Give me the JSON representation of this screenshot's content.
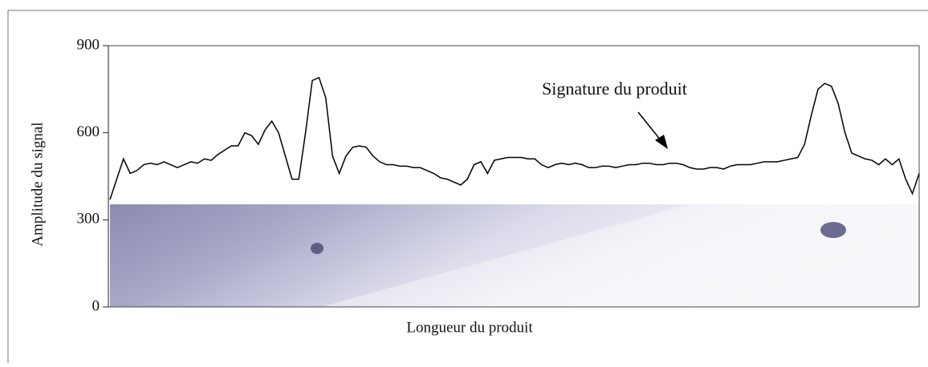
{
  "chart_data": {
    "type": "line",
    "ylabel": "Amplitude du signal",
    "xlabel": "Longueur du produit",
    "annotation": "Signature du produit",
    "ylim": [
      0,
      900
    ],
    "yticks": [
      0,
      300,
      600,
      900
    ],
    "color": "#000000",
    "values": [
      370,
      440,
      510,
      460,
      470,
      490,
      495,
      490,
      500,
      490,
      480,
      490,
      500,
      495,
      510,
      505,
      525,
      540,
      555,
      555,
      600,
      590,
      560,
      610,
      640,
      600,
      520,
      440,
      440,
      600,
      780,
      790,
      720,
      520,
      460,
      520,
      550,
      555,
      550,
      520,
      500,
      490,
      490,
      485,
      485,
      480,
      480,
      470,
      460,
      445,
      440,
      430,
      420,
      440,
      490,
      500,
      460,
      505,
      510,
      515,
      515,
      515,
      510,
      510,
      490,
      480,
      490,
      495,
      490,
      495,
      490,
      480,
      480,
      485,
      485,
      480,
      485,
      490,
      490,
      495,
      495,
      490,
      490,
      495,
      495,
      490,
      480,
      475,
      475,
      480,
      480,
      475,
      485,
      490,
      490,
      490,
      495,
      500,
      500,
      500,
      505,
      510,
      515,
      560,
      660,
      750,
      770,
      760,
      700,
      600,
      530,
      520,
      510,
      505,
      490,
      510,
      490,
      510,
      440,
      390,
      460
    ]
  }
}
